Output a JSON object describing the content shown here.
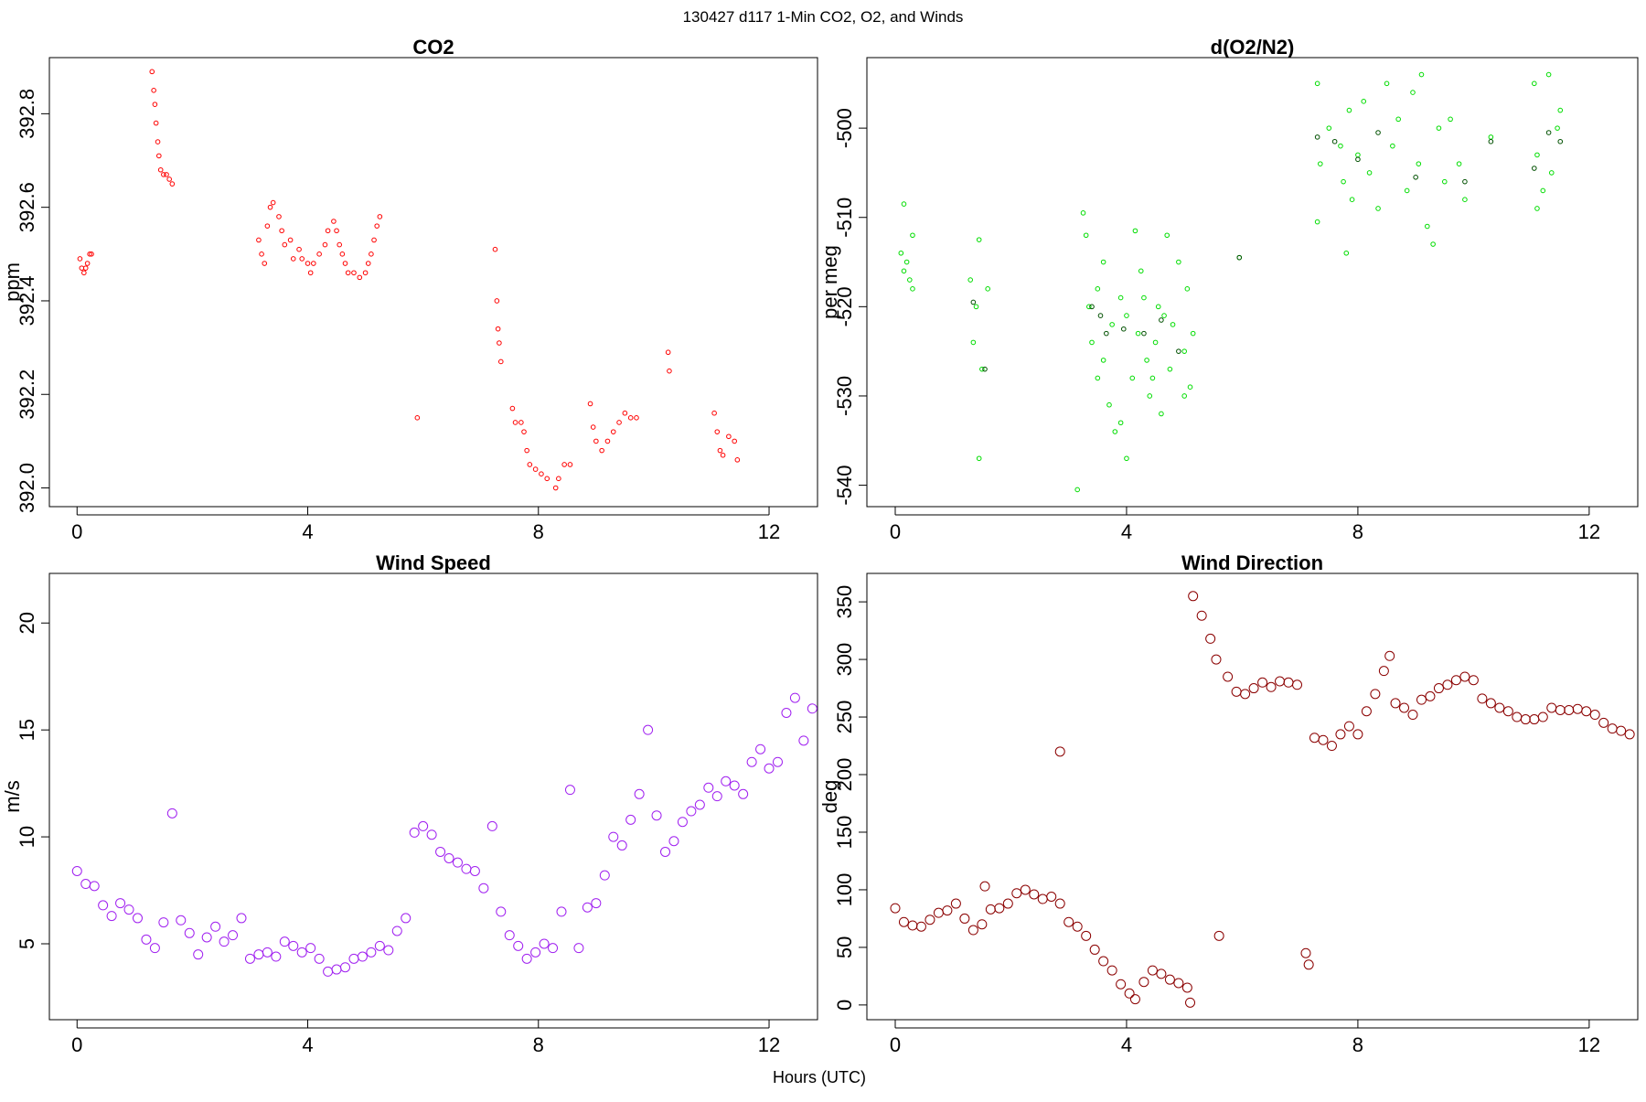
{
  "title": "130427   d117   1-Min CO2, O2, and Winds",
  "x_label": "Hours (UTC)",
  "chart_data": [
    {
      "type": "scatter",
      "title": "CO2",
      "y_label": "ppm",
      "xlim": [
        -0.48,
        12.84
      ],
      "ylim": [
        391.96,
        392.92
      ],
      "xticks": [
        0,
        4,
        8,
        12
      ],
      "yticks": [
        {
          "value": 392,
          "label": "392.0"
        },
        392.2,
        392.4,
        392.6,
        392.8
      ],
      "series": [
        {
          "color": "#ff0000",
          "x": [
            0.05,
            0.08,
            0.12,
            0.15,
            0.18,
            0.22,
            0.25,
            1.3,
            1.33,
            1.35,
            1.37,
            1.4,
            1.42,
            1.45,
            1.5,
            1.55,
            1.6,
            1.65,
            3.15,
            3.2,
            3.25,
            3.3,
            3.35,
            3.4,
            3.5,
            3.55,
            3.6,
            3.7,
            3.75,
            3.85,
            3.9,
            4.0,
            4.05,
            4.1,
            4.2,
            4.3,
            4.35,
            4.45,
            4.5,
            4.55,
            4.6,
            4.65,
            4.7,
            4.8,
            4.9,
            5.0,
            5.05,
            5.1,
            5.15,
            5.2,
            5.25,
            5.9,
            7.25,
            7.28,
            7.3,
            7.32,
            7.35,
            7.55,
            7.6,
            7.7,
            7.75,
            7.8,
            7.85,
            7.95,
            8.05,
            8.15,
            8.3,
            8.35,
            8.45,
            8.55,
            8.9,
            8.95,
            9.0,
            9.1,
            9.2,
            9.3,
            9.4,
            9.5,
            9.6,
            9.7,
            10.25,
            10.27,
            11.05,
            11.1,
            11.15,
            11.2,
            11.3,
            11.4,
            11.45
          ],
          "values": [
            392.49,
            392.47,
            392.46,
            392.47,
            392.48,
            392.5,
            392.5,
            392.89,
            392.85,
            392.82,
            392.78,
            392.74,
            392.71,
            392.68,
            392.67,
            392.67,
            392.66,
            392.65,
            392.53,
            392.5,
            392.48,
            392.56,
            392.6,
            392.61,
            392.58,
            392.55,
            392.52,
            392.53,
            392.49,
            392.51,
            392.49,
            392.48,
            392.46,
            392.48,
            392.5,
            392.52,
            392.55,
            392.57,
            392.55,
            392.52,
            392.5,
            392.48,
            392.46,
            392.46,
            392.45,
            392.46,
            392.48,
            392.5,
            392.53,
            392.56,
            392.58,
            392.15,
            392.51,
            392.4,
            392.34,
            392.31,
            392.27,
            392.17,
            392.14,
            392.14,
            392.12,
            392.08,
            392.05,
            392.04,
            392.03,
            392.02,
            392.0,
            392.02,
            392.05,
            392.05,
            392.18,
            392.13,
            392.1,
            392.08,
            392.1,
            392.12,
            392.14,
            392.16,
            392.15,
            392.15,
            392.29,
            392.25,
            392.16,
            392.12,
            392.08,
            392.07,
            392.11,
            392.1,
            392.06
          ]
        }
      ]
    },
    {
      "type": "scatter",
      "title": "d(O2/N2)",
      "y_label": "per meg",
      "xlim": [
        -0.49,
        12.84
      ],
      "ylim": [
        -542.4,
        -492.1
      ],
      "xticks": [
        0,
        4,
        8,
        12
      ],
      "yticks": [
        -540,
        -530,
        -520,
        -510,
        -500
      ],
      "series": [
        {
          "color": "#00dd00",
          "x": [
            0.1,
            0.15,
            0.15,
            0.2,
            0.25,
            0.3,
            0.3,
            1.3,
            1.35,
            1.4,
            1.45,
            1.5,
            1.6,
            1.45,
            3.15,
            3.25,
            3.3,
            3.35,
            3.4,
            3.5,
            3.6,
            3.7,
            3.75,
            3.8,
            3.9,
            4.0,
            4.0,
            4.1,
            4.15,
            4.2,
            4.3,
            4.35,
            4.4,
            4.5,
            4.55,
            4.6,
            4.7,
            4.75,
            4.8,
            4.9,
            5.0,
            5.05,
            5.1,
            5.15,
            3.5,
            4.25,
            3.9,
            4.65,
            5.0,
            3.6,
            4.45,
            5.95,
            7.3,
            7.35,
            7.3,
            7.5,
            7.7,
            7.75,
            7.8,
            7.85,
            7.9,
            8.0,
            8.1,
            8.2,
            8.35,
            8.5,
            8.6,
            8.7,
            8.85,
            8.95,
            9.05,
            9.1,
            9.2,
            9.3,
            9.4,
            9.5,
            9.6,
            9.75,
            9.85,
            10.3,
            11.05,
            11.1,
            11.2,
            11.3,
            11.35,
            11.45,
            11.5,
            11.1
          ],
          "values": [
            -514,
            -508.5,
            -516,
            -515,
            -517,
            -512,
            -518,
            -517,
            -524,
            -520,
            -512.5,
            -527,
            -518,
            -537,
            -540.5,
            -509.5,
            -512,
            -520,
            -524,
            -518,
            -526,
            -531,
            -522,
            -534,
            -519,
            -521,
            -537,
            -528,
            -511.5,
            -523,
            -519,
            -526,
            -530,
            -524,
            -520,
            -532,
            -512,
            -527,
            -522,
            -515,
            -525,
            -518,
            -529,
            -523,
            -528,
            -516,
            -533,
            -521,
            -530,
            -515,
            -528,
            -514.5,
            -495,
            -504,
            -510.5,
            -500,
            -502,
            -506,
            -514,
            -498,
            -508,
            -503,
            -497,
            -505,
            -509,
            -495,
            -502,
            -499,
            -507,
            -496,
            -504,
            -494,
            -511,
            -513,
            -500,
            -506,
            -499,
            -504,
            -508,
            -501,
            -495,
            -503,
            -507,
            -494,
            -505,
            -500,
            -498,
            -509
          ]
        },
        {
          "color": "#005000",
          "x": [
            1.35,
            1.55,
            3.4,
            3.55,
            3.65,
            3.95,
            4.3,
            4.6,
            4.9,
            5.95,
            7.3,
            7.6,
            8.0,
            8.35,
            9.0,
            9.85,
            10.3,
            11.05,
            11.3,
            11.5
          ],
          "values": [
            -519.5,
            -527,
            -520,
            -521,
            -523,
            -522.5,
            -523,
            -521.5,
            -525,
            -514.5,
            -501,
            -501.5,
            -503.5,
            -500.5,
            -505.5,
            -506,
            -501.5,
            -504.5,
            -500.5,
            -501.5
          ]
        }
      ]
    },
    {
      "type": "scatter",
      "title": "Wind Speed",
      "y_label": "m/s",
      "xlim": [
        -0.48,
        12.84
      ],
      "ylim": [
        1.45,
        22.32
      ],
      "xticks": [
        0,
        4,
        8,
        12
      ],
      "yticks": [
        5,
        10,
        15,
        20
      ],
      "series": [
        {
          "color": "#a020f0",
          "x": [
            0,
            0.15,
            0.3,
            0.45,
            0.6,
            0.75,
            0.9,
            1.05,
            1.2,
            1.35,
            1.5,
            1.65,
            1.8,
            1.95,
            2.1,
            2.25,
            2.4,
            2.55,
            2.7,
            2.85,
            3.0,
            3.15,
            3.3,
            3.45,
            3.6,
            3.75,
            3.9,
            4.05,
            4.2,
            4.35,
            4.5,
            4.65,
            4.8,
            4.95,
            5.1,
            5.25,
            5.4,
            5.55,
            5.7,
            5.85,
            6.0,
            6.15,
            6.3,
            6.45,
            6.6,
            6.75,
            6.9,
            7.05,
            7.2,
            7.35,
            7.5,
            7.65,
            7.8,
            7.95,
            8.1,
            8.25,
            8.4,
            8.55,
            8.7,
            8.85,
            9.0,
            9.15,
            9.3,
            9.45,
            9.6,
            9.75,
            9.9,
            10.05,
            10.2,
            10.35,
            10.5,
            10.65,
            10.8,
            10.95,
            11.1,
            11.25,
            11.4,
            11.55,
            11.7,
            11.85,
            12.0,
            12.15,
            12.3,
            12.45,
            12.6,
            12.75
          ],
          "values": [
            8.4,
            7.8,
            7.7,
            6.8,
            6.3,
            6.9,
            6.6,
            6.2,
            5.2,
            4.8,
            6.0,
            11.1,
            6.1,
            5.5,
            4.5,
            5.3,
            5.8,
            5.1,
            5.4,
            6.2,
            4.3,
            4.5,
            4.6,
            4.4,
            5.1,
            4.9,
            4.6,
            4.8,
            4.3,
            3.7,
            3.8,
            3.9,
            4.3,
            4.4,
            4.6,
            4.9,
            4.7,
            5.6,
            6.2,
            10.2,
            10.5,
            10.1,
            9.3,
            9.0,
            8.8,
            8.5,
            8.4,
            7.6,
            10.5,
            6.5,
            5.4,
            4.9,
            4.3,
            4.6,
            5.0,
            4.8,
            6.5,
            12.2,
            4.8,
            6.7,
            6.9,
            8.2,
            10.0,
            9.6,
            10.8,
            12.0,
            15.0,
            11.0,
            9.3,
            9.8,
            10.7,
            11.2,
            11.5,
            12.3,
            11.9,
            12.6,
            12.4,
            12.0,
            13.5,
            14.1,
            13.2,
            13.5,
            15.8,
            16.5,
            14.5,
            16.0
          ]
        }
      ]
    },
    {
      "type": "scatter",
      "title": "Wind Direction",
      "y_label": "deg",
      "xlim": [
        -0.49,
        12.84
      ],
      "ylim": [
        -12.8,
        374.7
      ],
      "xticks": [
        0,
        4,
        8,
        12
      ],
      "yticks": [
        0,
        50,
        100,
        150,
        200,
        250,
        300,
        350
      ],
      "series": [
        {
          "color": "#8b0000",
          "x": [
            0,
            0.15,
            0.3,
            0.45,
            0.6,
            0.75,
            0.9,
            1.05,
            1.2,
            1.35,
            1.5,
            1.55,
            1.65,
            1.8,
            1.95,
            2.1,
            2.25,
            2.4,
            2.55,
            2.7,
            2.85,
            2.85,
            3.0,
            3.15,
            3.3,
            3.45,
            3.6,
            3.75,
            3.9,
            4.05,
            4.15,
            4.3,
            4.45,
            4.6,
            4.75,
            4.9,
            5.05,
            5.1,
            5.15,
            5.3,
            5.45,
            5.55,
            5.6,
            5.75,
            5.9,
            6.05,
            6.2,
            6.35,
            6.5,
            6.65,
            6.8,
            6.95,
            7.1,
            7.15,
            7.25,
            7.4,
            7.55,
            7.7,
            7.85,
            8.0,
            8.15,
            8.3,
            8.45,
            8.55,
            8.65,
            8.8,
            8.95,
            9.1,
            9.25,
            9.4,
            9.55,
            9.7,
            9.85,
            10.0,
            10.15,
            10.3,
            10.45,
            10.6,
            10.75,
            10.9,
            11.05,
            11.2,
            11.35,
            11.5,
            11.65,
            11.8,
            11.95,
            12.1,
            12.25,
            12.4,
            12.55,
            12.7
          ],
          "values": [
            84,
            72,
            69,
            68,
            74,
            80,
            82,
            88,
            75,
            65,
            70,
            103,
            83,
            84,
            88,
            97,
            100,
            96,
            92,
            94,
            220,
            88,
            72,
            68,
            60,
            48,
            38,
            30,
            18,
            10,
            5,
            20,
            30,
            27,
            22,
            19,
            15,
            2,
            355,
            338,
            318,
            300,
            60,
            285,
            272,
            270,
            275,
            280,
            276,
            281,
            280,
            278,
            45,
            35,
            232,
            230,
            225,
            235,
            242,
            235,
            255,
            270,
            290,
            303,
            262,
            258,
            252,
            265,
            268,
            275,
            278,
            282,
            285,
            282,
            266,
            262,
            258,
            255,
            250,
            248,
            248,
            250,
            258,
            256,
            256,
            257,
            255,
            252,
            245,
            240,
            238,
            235
          ]
        }
      ]
    }
  ]
}
